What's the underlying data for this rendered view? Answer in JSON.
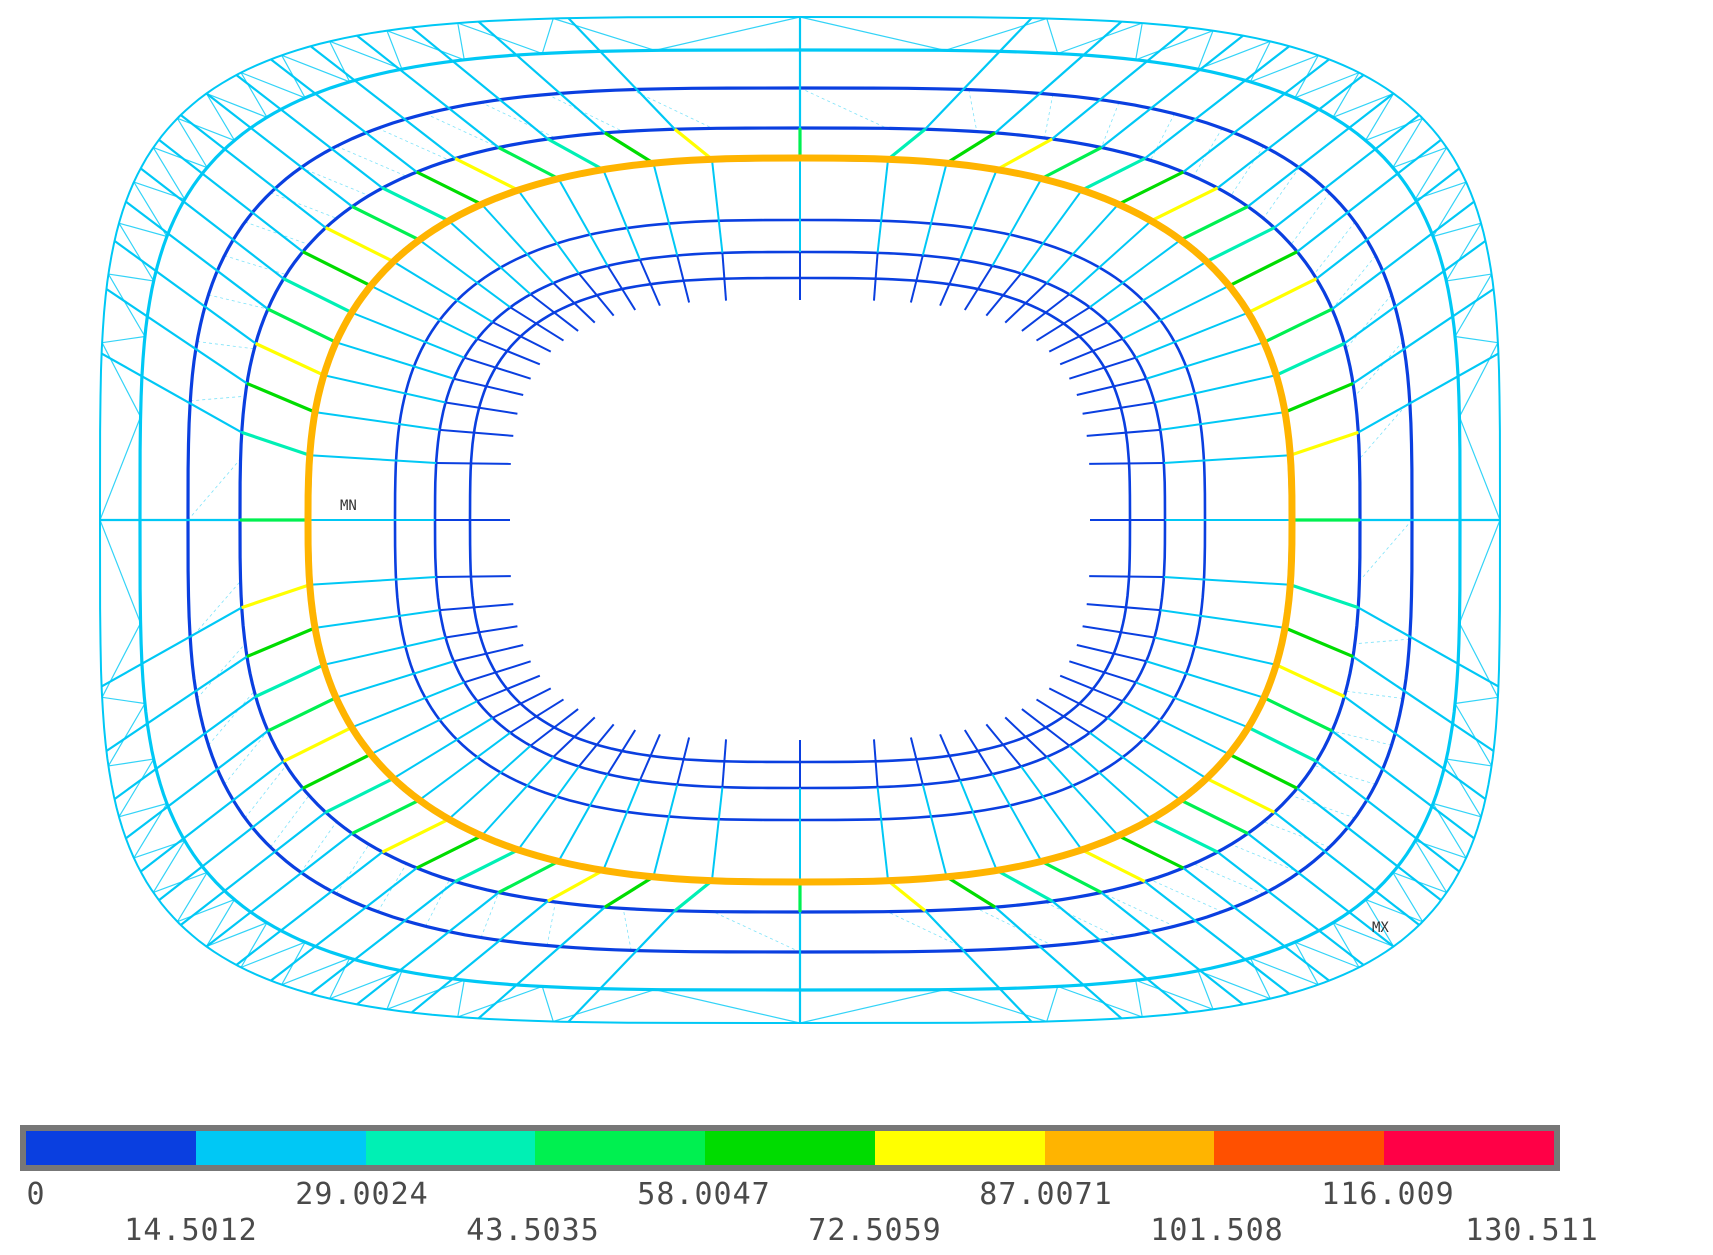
{
  "model": {
    "min_marker": "MN",
    "max_marker": "MX"
  },
  "legend": {
    "colors": [
      "#0a3fe0",
      "#00c8f5",
      "#00f0b4",
      "#00f050",
      "#00dc00",
      "#ffff00",
      "#ffb400",
      "#ff5000",
      "#ff0046"
    ],
    "labels": [
      "0",
      "14.5012",
      "29.0024",
      "43.5035",
      "58.0047",
      "72.5059",
      "87.0071",
      "101.508",
      "116.009",
      "130.511"
    ]
  }
}
